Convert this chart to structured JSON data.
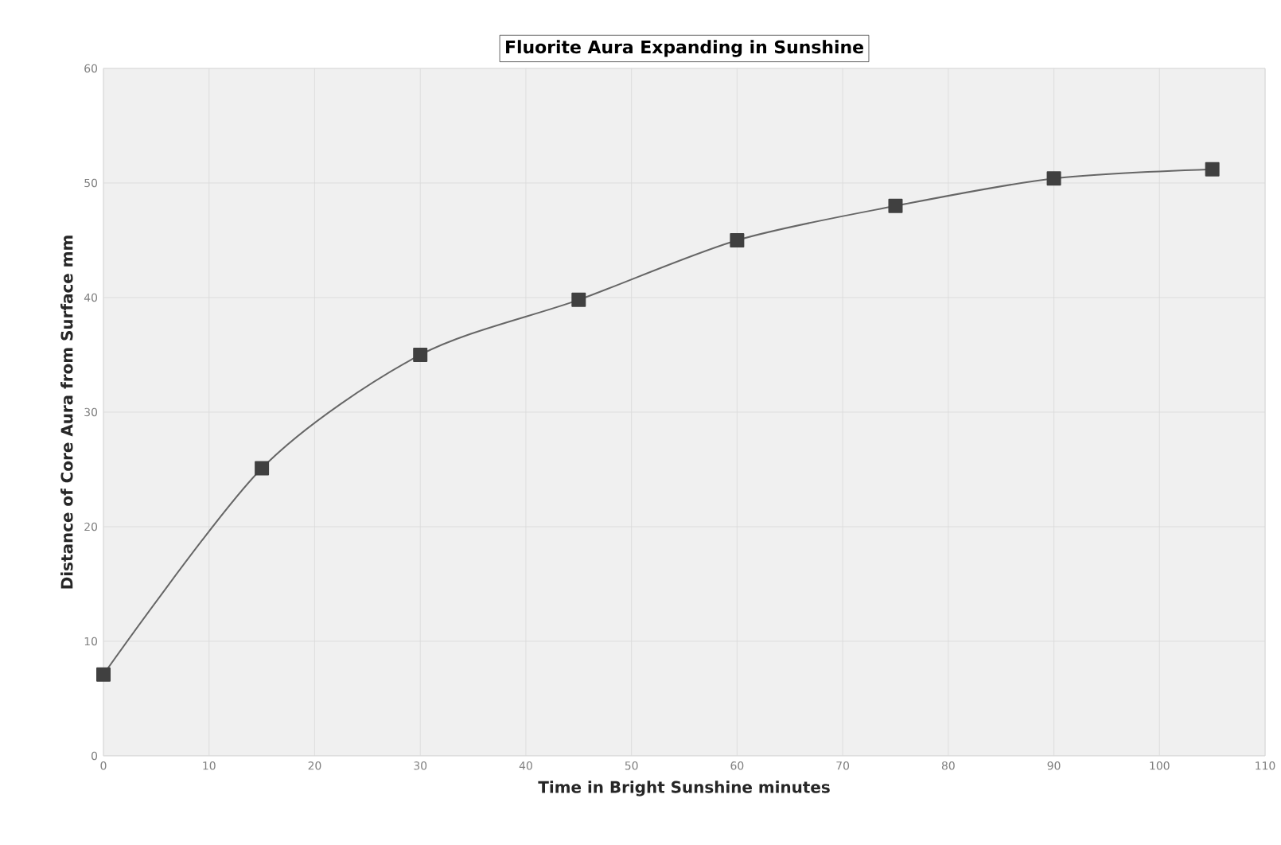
{
  "chart_data": {
    "type": "line",
    "title": "Fluorite Aura Expanding in Sunshine",
    "xlabel": "Time in Bright Sunshine  minutes",
    "ylabel": "Distance of Core Aura from Surface   mm",
    "x": [
      0,
      15,
      30,
      45,
      60,
      75,
      90,
      105
    ],
    "series": [
      {
        "color": "#404040",
        "values": [
          7.1,
          25.1,
          35.0,
          39.8,
          45.0,
          48.0,
          50.4,
          51.2
        ]
      }
    ],
    "xlim": [
      0,
      110
    ],
    "xticks": [
      0,
      10,
      20,
      30,
      40,
      50,
      60,
      70,
      80,
      90,
      100,
      110
    ],
    "ylim": [
      0,
      60
    ],
    "yticks": [
      0,
      10,
      20,
      30,
      40,
      50,
      60
    ],
    "grid": true,
    "marker": "square",
    "line_style": "solid"
  }
}
